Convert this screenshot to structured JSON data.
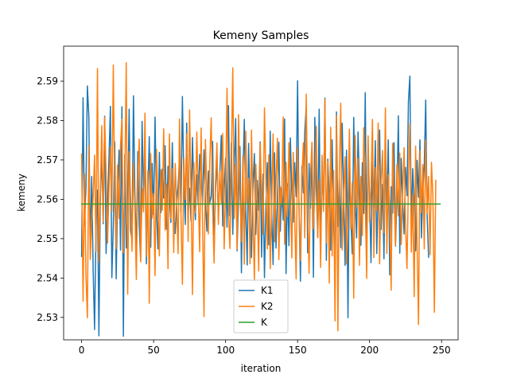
{
  "chart_data": {
    "type": "line",
    "title": "Kemeny Samples",
    "xlabel": "iteration",
    "ylabel": "kemeny",
    "xlim": [
      -12.5,
      261.5
    ],
    "ylim": [
      2.5243,
      2.5989
    ],
    "xticks": [
      0,
      50,
      100,
      150,
      200,
      250
    ],
    "xtick_labels": [
      "0",
      "50",
      "100",
      "150",
      "200",
      "250"
    ],
    "yticks": [
      2.53,
      2.54,
      2.55,
      2.56,
      2.57,
      2.58,
      2.59
    ],
    "ytick_labels": [
      "2.53",
      "2.54",
      "2.55",
      "2.56",
      "2.57",
      "2.58",
      "2.59"
    ],
    "grid": false,
    "legend_position": "lower center",
    "series": [
      {
        "name": "K1",
        "color": "#1f77b4",
        "x_start": 0,
        "values": [
          2.5455,
          2.5858,
          2.5535,
          2.5629,
          2.5888,
          2.5812,
          2.5472,
          2.5658,
          2.5421,
          2.5269,
          2.5531,
          2.5623,
          2.5253,
          2.5607,
          2.5714,
          2.5538,
          2.5811,
          2.5462,
          2.5593,
          2.5705,
          2.5836,
          2.5401,
          2.5532,
          2.5746,
          2.5398,
          2.5614,
          2.5725,
          2.5471,
          2.5835,
          2.5252,
          2.5713,
          2.5476,
          2.5555,
          2.5829,
          2.5521,
          2.5497,
          2.5863,
          2.5612,
          2.5463,
          2.5721,
          2.5534,
          2.5444,
          2.5798,
          2.5603,
          2.5718,
          2.5436,
          2.5613,
          2.5759,
          2.5478,
          2.5691,
          2.5561,
          2.5809,
          2.5582,
          2.5474,
          2.5719,
          2.5566,
          2.5677,
          2.5603,
          2.5736,
          2.5524,
          2.5684,
          2.5605,
          2.5541,
          2.5744,
          2.5566,
          2.5513,
          2.5589,
          2.5635,
          2.5702,
          2.5567,
          2.5861,
          2.5645,
          2.5536,
          2.5794,
          2.5562,
          2.5628,
          2.5544,
          2.5757,
          2.5612,
          2.5548,
          2.5662,
          2.5585,
          2.5714,
          2.5644,
          2.5587,
          2.5726,
          2.5596,
          2.5519,
          2.5672,
          2.5591,
          2.5608,
          2.5747,
          2.5466,
          2.5621,
          2.5707,
          2.5548,
          2.5664,
          2.5762,
          2.5532,
          2.5627,
          2.5704,
          2.5529,
          2.5838,
          2.5558,
          2.5743,
          2.5511,
          2.5672,
          2.5805,
          2.5469,
          2.5612,
          2.5734,
          2.5413,
          2.5653,
          2.5803,
          2.5576,
          2.5433,
          2.5742,
          2.5578,
          2.5452,
          2.5629,
          2.5716,
          2.5511,
          2.5648,
          2.5572,
          2.5746,
          2.5453,
          2.5664,
          2.5401,
          2.5585,
          2.5693,
          2.5484,
          2.5773,
          2.5562,
          2.5434,
          2.5718,
          2.5476,
          2.5611,
          2.5745,
          2.5519,
          2.5629,
          2.5547,
          2.5804,
          2.5411,
          2.5639,
          2.5482,
          2.5756,
          2.5618,
          2.5542,
          2.5693,
          2.5607,
          2.5901,
          2.5573,
          2.5392,
          2.5684,
          2.5616,
          2.5772,
          2.5834,
          2.5464,
          2.5691,
          2.5577,
          2.5731,
          2.5402,
          2.5808,
          2.5633,
          2.5504,
          2.5829,
          2.5457,
          2.5688,
          2.5573,
          2.5857,
          2.5445,
          2.5702,
          2.5613,
          2.5471,
          2.5751,
          2.5555,
          2.5399,
          2.5822,
          2.5531,
          2.5652,
          2.5477,
          2.5793,
          2.5611,
          2.5432,
          2.5725,
          2.5299,
          2.5689,
          2.5552,
          2.5461,
          2.5808,
          2.5597,
          2.5502,
          2.5771,
          2.5625,
          2.5483,
          2.5693,
          2.5564,
          2.5871,
          2.5483,
          2.5732,
          2.5608,
          2.5439,
          2.5693,
          2.5579,
          2.5749,
          2.5462,
          2.5621,
          2.5776,
          2.5523,
          2.5638,
          2.5449,
          2.5711,
          2.5587,
          2.5751,
          2.5408,
          2.5632,
          2.5565,
          2.5744,
          2.5481,
          2.5601,
          2.5812,
          2.5463,
          2.5704,
          2.5593,
          2.5512,
          2.5681,
          2.5609,
          2.5849,
          2.5913,
          2.5532,
          2.5678,
          2.5593,
          2.5469,
          2.5699,
          2.5605,
          2.5751,
          2.5502,
          2.5621,
          2.5684,
          2.5852,
          2.5559,
          2.5453
        ]
      },
      {
        "name": "K2",
        "color": "#ff7f0e",
        "x_start": 0,
        "values": [
          2.5715,
          2.5341,
          2.5664,
          2.5408,
          2.5299,
          2.5736,
          2.5447,
          2.5543,
          2.5603,
          2.5712,
          2.5467,
          2.5932,
          2.5441,
          2.5623,
          2.5787,
          2.5542,
          2.5808,
          2.5664,
          2.5489,
          2.5627,
          2.5734,
          2.5569,
          2.5941,
          2.5606,
          2.5474,
          2.5687,
          2.5551,
          2.5736,
          2.5803,
          2.5464,
          2.5644,
          2.5947,
          2.5359,
          2.5721,
          2.5606,
          2.5468,
          2.5692,
          2.5572,
          2.5396,
          2.5659,
          2.5753,
          2.5441,
          2.5627,
          2.5568,
          2.5819,
          2.5455,
          2.5673,
          2.5336,
          2.5716,
          2.5552,
          2.5614,
          2.5406,
          2.5727,
          2.5587,
          2.5456,
          2.5674,
          2.5572,
          2.5779,
          2.5522,
          2.5639,
          2.5424,
          2.5766,
          2.5551,
          2.5678,
          2.5465,
          2.5691,
          2.5591,
          2.5462,
          2.5804,
          2.5566,
          2.5384,
          2.5703,
          2.5599,
          2.5766,
          2.5493,
          2.5827,
          2.5607,
          2.5358,
          2.5693,
          2.5565,
          2.5771,
          2.5612,
          2.5467,
          2.5781,
          2.5543,
          2.5302,
          2.5752,
          2.5609,
          2.5512,
          2.5693,
          2.5807,
          2.5575,
          2.5438,
          2.5646,
          2.5743,
          2.5536,
          2.5671,
          2.5591,
          2.5767,
          2.5474,
          2.5622,
          2.5882,
          2.5571,
          2.5475,
          2.5698,
          2.5934,
          2.5551,
          2.5689,
          2.5473,
          2.5815,
          2.5608,
          2.5492,
          2.5711,
          2.5435,
          2.5773,
          2.5592,
          2.5654,
          2.5436,
          2.5776,
          2.5573,
          2.5391,
          2.5689,
          2.5582,
          2.5418,
          2.5743,
          2.5619,
          2.5512,
          2.5832,
          2.5655,
          2.5474,
          2.5713,
          2.5424,
          2.5581,
          2.5766,
          2.5492,
          2.5644,
          2.5755,
          2.5447,
          2.5632,
          2.5589,
          2.5809,
          2.5486,
          2.5694,
          2.5556,
          2.5744,
          2.5617,
          2.5451,
          2.5719,
          2.5553,
          2.5398,
          2.5732,
          2.5585,
          2.5444,
          2.5654,
          2.5743,
          2.5502,
          2.5867,
          2.5576,
          2.5412,
          2.5661,
          2.5745,
          2.5524,
          2.5624,
          2.5785,
          2.5502,
          2.5648,
          2.5427,
          2.5712,
          2.5569,
          2.5854,
          2.5489,
          2.5696,
          2.5387,
          2.5783,
          2.5456,
          2.5673,
          2.5291,
          2.5812,
          2.5266,
          2.5667,
          2.5844,
          2.5471,
          2.5613,
          2.5708,
          2.5436,
          2.5585,
          2.5778,
          2.5523,
          2.5643,
          2.5349,
          2.5762,
          2.5581,
          2.5704,
          2.5432,
          2.5658,
          2.5508,
          2.5782,
          2.5602,
          2.5399,
          2.5761,
          2.5542,
          2.5623,
          2.5803,
          2.5452,
          2.5681,
          2.5571,
          2.5794,
          2.5436,
          2.5641,
          2.5724,
          2.5515,
          2.5832,
          2.5462,
          2.5663,
          2.5574,
          2.5369,
          2.5742,
          2.5618,
          2.5483,
          2.5689,
          2.5558,
          2.5717,
          2.5485,
          2.5616,
          2.5731,
          2.5533,
          2.5424,
          2.5648,
          2.5792,
          2.5466,
          2.5612,
          2.5353,
          2.5735,
          2.5487,
          2.5282,
          2.5724,
          2.5566,
          2.5688,
          2.5474,
          2.5751,
          2.5564,
          2.5658,
          2.5459,
          2.5694,
          2.5608,
          2.5313,
          2.5648
        ]
      },
      {
        "name": "K",
        "color": "#2ca02c",
        "x": [
          0,
          249
        ],
        "values": [
          2.5588,
          2.5588
        ]
      }
    ]
  }
}
